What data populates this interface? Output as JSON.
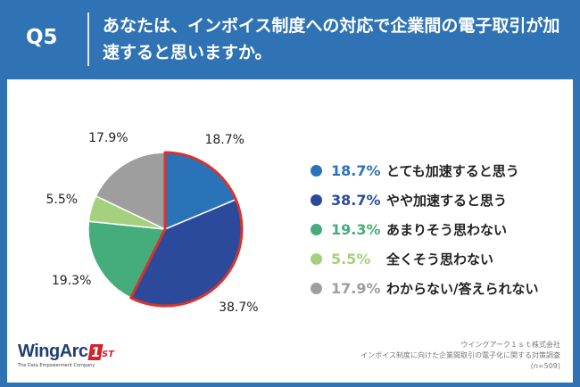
{
  "header": {
    "question_label": "Q5",
    "question_text": "あなたは、インボイス制度への対応で企業間の電子取引が加速すると思いますか。"
  },
  "chart_data": {
    "type": "pie",
    "categories": [
      "とても加速すると思う",
      "やや加速すると思う",
      "あまりそう思わない",
      "全くそう思わない",
      "わからない/答えられない"
    ],
    "values": [
      18.7,
      38.7,
      19.3,
      5.5,
      17.9
    ],
    "value_labels": [
      "18.7%",
      "38.7%",
      "19.3%",
      "5.5%",
      "17.9%"
    ],
    "colors": [
      "#2b73b8",
      "#2c4a9c",
      "#44ad7b",
      "#a5d17e",
      "#9e9e9e"
    ],
    "highlight": [
      "#2b73b8",
      "#2c4a9c"
    ],
    "highlight_color": "#d8332c",
    "legend_position": "right"
  },
  "footer": {
    "logo_main": "WingArc",
    "logo_one": "1",
    "logo_st": "ST",
    "logo_tagline": "The Data Empowerment Company",
    "source_lines": [
      "ウイングアーク１ｓｔ株式会社",
      "インボイス制度に向けた企業間取引の電子化に関する対策調査",
      "(n=509)"
    ]
  }
}
